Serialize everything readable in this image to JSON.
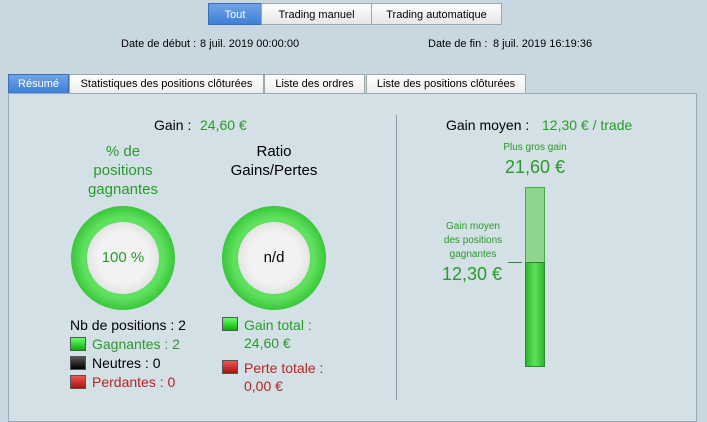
{
  "filters": {
    "buttons": [
      "Tout",
      "Trading manuel",
      "Trading automatique"
    ],
    "start_label": "Date de début :",
    "start": "8 juil. 2019 00:00:00",
    "end_label": "Date de fin :",
    "end": "8 juil. 2019 16:19:36"
  },
  "tabs": [
    "Résumé",
    "Statistiques des positions clôturées",
    "Liste des ordres",
    "Liste des positions clôturées"
  ],
  "summary": {
    "gain_label": "Gain :",
    "gain": "24,60 €",
    "win_rate": {
      "title": [
        "% de",
        "positions",
        "gagnantes"
      ],
      "value": "100 %"
    },
    "ratio": {
      "title": [
        "Ratio",
        "Gains/Pertes"
      ],
      "value": "n/d"
    },
    "positions": {
      "total": "Nb de positions : 2",
      "winning": "Gagnantes : 2",
      "neutral": "Neutres : 0",
      "losing": "Perdantes : 0"
    },
    "totals": {
      "gain_label": "Gain total :",
      "gain": "24,60 €",
      "loss_label": "Perte totale :",
      "loss": "0,00 €"
    },
    "average": {
      "label": "Gain moyen :",
      "value": "12,30 € / trade",
      "max_label": "Plus gros gain",
      "max": "21,60 €",
      "avg_win_label": [
        "Gain moyen",
        "des positions",
        "gagnantes"
      ],
      "avg_win": "12,30 €"
    }
  }
}
